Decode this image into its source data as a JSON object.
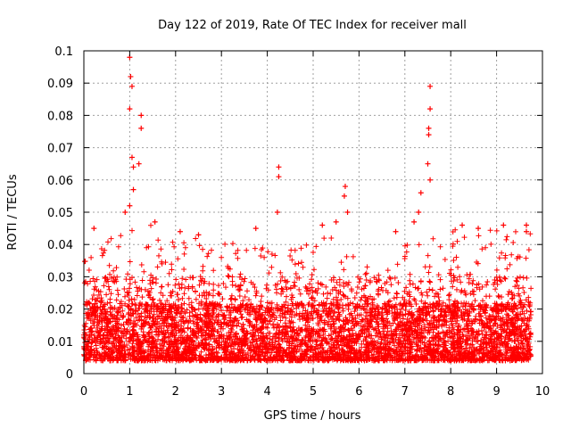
{
  "chart_data": {
    "type": "scatter",
    "title": "Day 122 of 2019, Rate Of TEC Index for receiver mall",
    "xlabel": "GPS time / hours",
    "ylabel": "ROTI / TECUs",
    "xlim": [
      0,
      10
    ],
    "ylim": [
      0,
      0.1
    ],
    "xticks": [
      "0",
      "1",
      "2",
      "3",
      "4",
      "5",
      "6",
      "7",
      "8",
      "9",
      "10"
    ],
    "yticks": [
      "0",
      "0.01",
      "0.02",
      "0.03",
      "0.04",
      "0.05",
      "0.06",
      "0.07",
      "0.08",
      "0.09",
      "0.1"
    ],
    "grid": true,
    "marker": "+",
    "series_color": "#ff0000",
    "x_extent": [
      0,
      9.75
    ],
    "peaks": [
      {
        "x": 1.0,
        "y": 0.098
      },
      {
        "x": 1.02,
        "y": 0.092
      },
      {
        "x": 1.05,
        "y": 0.089
      },
      {
        "x": 1.0,
        "y": 0.082
      },
      {
        "x": 1.25,
        "y": 0.08
      },
      {
        "x": 1.25,
        "y": 0.076
      },
      {
        "x": 1.05,
        "y": 0.067
      },
      {
        "x": 1.2,
        "y": 0.065
      },
      {
        "x": 1.08,
        "y": 0.064
      },
      {
        "x": 1.08,
        "y": 0.057
      },
      {
        "x": 1.0,
        "y": 0.052
      },
      {
        "x": 0.9,
        "y": 0.05
      },
      {
        "x": 1.55,
        "y": 0.047
      },
      {
        "x": 0.22,
        "y": 0.045
      },
      {
        "x": 4.25,
        "y": 0.064
      },
      {
        "x": 4.25,
        "y": 0.061
      },
      {
        "x": 4.22,
        "y": 0.05
      },
      {
        "x": 5.7,
        "y": 0.058
      },
      {
        "x": 5.68,
        "y": 0.055
      },
      {
        "x": 5.75,
        "y": 0.05
      },
      {
        "x": 5.5,
        "y": 0.047
      },
      {
        "x": 5.2,
        "y": 0.046
      },
      {
        "x": 7.55,
        "y": 0.089
      },
      {
        "x": 7.55,
        "y": 0.082
      },
      {
        "x": 7.52,
        "y": 0.076
      },
      {
        "x": 7.52,
        "y": 0.074
      },
      {
        "x": 7.5,
        "y": 0.065
      },
      {
        "x": 7.55,
        "y": 0.06
      },
      {
        "x": 7.35,
        "y": 0.056
      },
      {
        "x": 7.3,
        "y": 0.05
      },
      {
        "x": 7.2,
        "y": 0.047
      },
      {
        "x": 8.25,
        "y": 0.046
      },
      {
        "x": 8.6,
        "y": 0.045
      },
      {
        "x": 9.15,
        "y": 0.046
      },
      {
        "x": 9.65,
        "y": 0.046
      },
      {
        "x": 9.65,
        "y": 0.044
      },
      {
        "x": 6.8,
        "y": 0.044
      },
      {
        "x": 3.75,
        "y": 0.045
      },
      {
        "x": 2.1,
        "y": 0.044
      },
      {
        "x": 2.5,
        "y": 0.043
      }
    ],
    "bulk_band": {
      "description": "dense scatter of ROTI values from 0.005 to about 0.03, occasionally up to 0.045, across 0 to 9.75 hours",
      "typical_range": [
        0.004,
        0.03
      ],
      "hourly_max_envelope": [
        {
          "x": 0.0,
          "y": 0.035
        },
        {
          "x": 0.5,
          "y": 0.043
        },
        {
          "x": 1.0,
          "y": 0.045
        },
        {
          "x": 1.5,
          "y": 0.047
        },
        {
          "x": 2.0,
          "y": 0.044
        },
        {
          "x": 2.5,
          "y": 0.043
        },
        {
          "x": 3.0,
          "y": 0.042
        },
        {
          "x": 3.5,
          "y": 0.04
        },
        {
          "x": 4.0,
          "y": 0.042
        },
        {
          "x": 4.5,
          "y": 0.04
        },
        {
          "x": 5.0,
          "y": 0.043
        },
        {
          "x": 5.5,
          "y": 0.045
        },
        {
          "x": 6.0,
          "y": 0.035
        },
        {
          "x": 6.5,
          "y": 0.03
        },
        {
          "x": 7.0,
          "y": 0.04
        },
        {
          "x": 7.5,
          "y": 0.042
        },
        {
          "x": 8.0,
          "y": 0.045
        },
        {
          "x": 8.5,
          "y": 0.044
        },
        {
          "x": 9.0,
          "y": 0.045
        },
        {
          "x": 9.5,
          "y": 0.045
        }
      ]
    }
  }
}
